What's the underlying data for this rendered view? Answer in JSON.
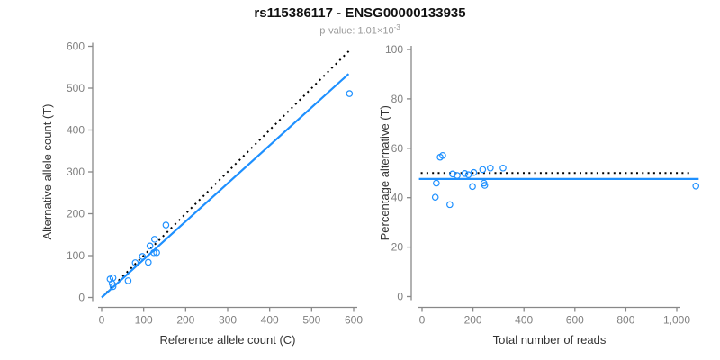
{
  "header": {
    "title": "rs115386117 - ENSG00000133935",
    "pvalue_prefix": "p-value: 1.01×10",
    "pvalue_exponent": "-3"
  },
  "colors": {
    "points": "#1E90FF",
    "fit_line": "#1E90FF",
    "identity_line": "#000000",
    "axis": "#888888",
    "tick_text": "#808080",
    "axis_title": "#333333"
  },
  "chart_data": [
    {
      "type": "scatter",
      "panel": "allele-counts",
      "xlabel": "Reference allele count (C)",
      "ylabel": "Alternative allele count (T)",
      "xlim": [
        0,
        600
      ],
      "ylim": [
        0,
        600
      ],
      "xticks": [
        0,
        100,
        200,
        300,
        400,
        500,
        600
      ],
      "yticks": [
        0,
        100,
        200,
        300,
        400,
        500,
        600
      ],
      "xtick_labels": [
        "0",
        "100",
        "200",
        "300",
        "400",
        "500",
        "600"
      ],
      "ytick_labels": [
        "0",
        "100",
        "200",
        "300",
        "400",
        "500",
        "600"
      ],
      "grid": false,
      "points": [
        [
          20,
          44
        ],
        [
          27,
          47
        ],
        [
          25,
          33
        ],
        [
          27,
          26
        ],
        [
          63,
          40
        ],
        [
          80,
          83
        ],
        [
          97,
          98
        ],
        [
          111,
          84
        ],
        [
          115,
          123
        ],
        [
          124,
          107
        ],
        [
          131,
          107
        ],
        [
          126,
          139
        ],
        [
          153,
          173
        ],
        [
          590,
          487
        ]
      ],
      "lines": [
        {
          "name": "identity-line",
          "style": "dotted",
          "color": "#000000",
          "x1": 2,
          "y1": 2,
          "x2": 594,
          "y2": 594
        },
        {
          "name": "fit-line",
          "style": "solid",
          "color": "#1E90FF",
          "x1": 0,
          "y1": 0,
          "x2": 588,
          "y2": 534
        }
      ]
    },
    {
      "type": "scatter",
      "panel": "percentage-alternative",
      "xlabel": "Total number of reads",
      "ylabel": "Percentage alternative (T)",
      "xlim": [
        0,
        1000
      ],
      "ylim": [
        0,
        100
      ],
      "xticks": [
        0,
        200,
        400,
        600,
        800,
        1000
      ],
      "yticks": [
        0,
        20,
        40,
        60,
        80,
        100
      ],
      "xtick_labels": [
        "0",
        "200",
        "400",
        "600",
        "800",
        "1,000"
      ],
      "ytick_labels": [
        "0",
        "20",
        "40",
        "60",
        "80",
        "100"
      ],
      "grid": false,
      "points": [
        [
          71,
          56.4
        ],
        [
          81,
          57.1
        ],
        [
          56,
          45.9
        ],
        [
          52,
          40.2
        ],
        [
          109,
          37.2
        ],
        [
          120,
          49.6
        ],
        [
          138,
          49.0
        ],
        [
          168,
          49.8
        ],
        [
          182,
          49.3
        ],
        [
          198,
          44.5
        ],
        [
          203,
          50.2
        ],
        [
          238,
          51.4
        ],
        [
          243,
          45.9
        ],
        [
          246,
          45.0
        ],
        [
          268,
          52.0
        ],
        [
          318,
          52.0
        ],
        [
          1075,
          44.7
        ]
      ],
      "lines": [
        {
          "name": "null-50pct-line",
          "style": "dotted",
          "color": "#000000",
          "x1": -5,
          "y1": 50,
          "x2": 1052,
          "y2": 50
        },
        {
          "name": "fit-line",
          "style": "solid",
          "color": "#1E90FF",
          "x1": -12,
          "y1": 47.6,
          "x2": 1086,
          "y2": 47.6
        }
      ]
    }
  ]
}
